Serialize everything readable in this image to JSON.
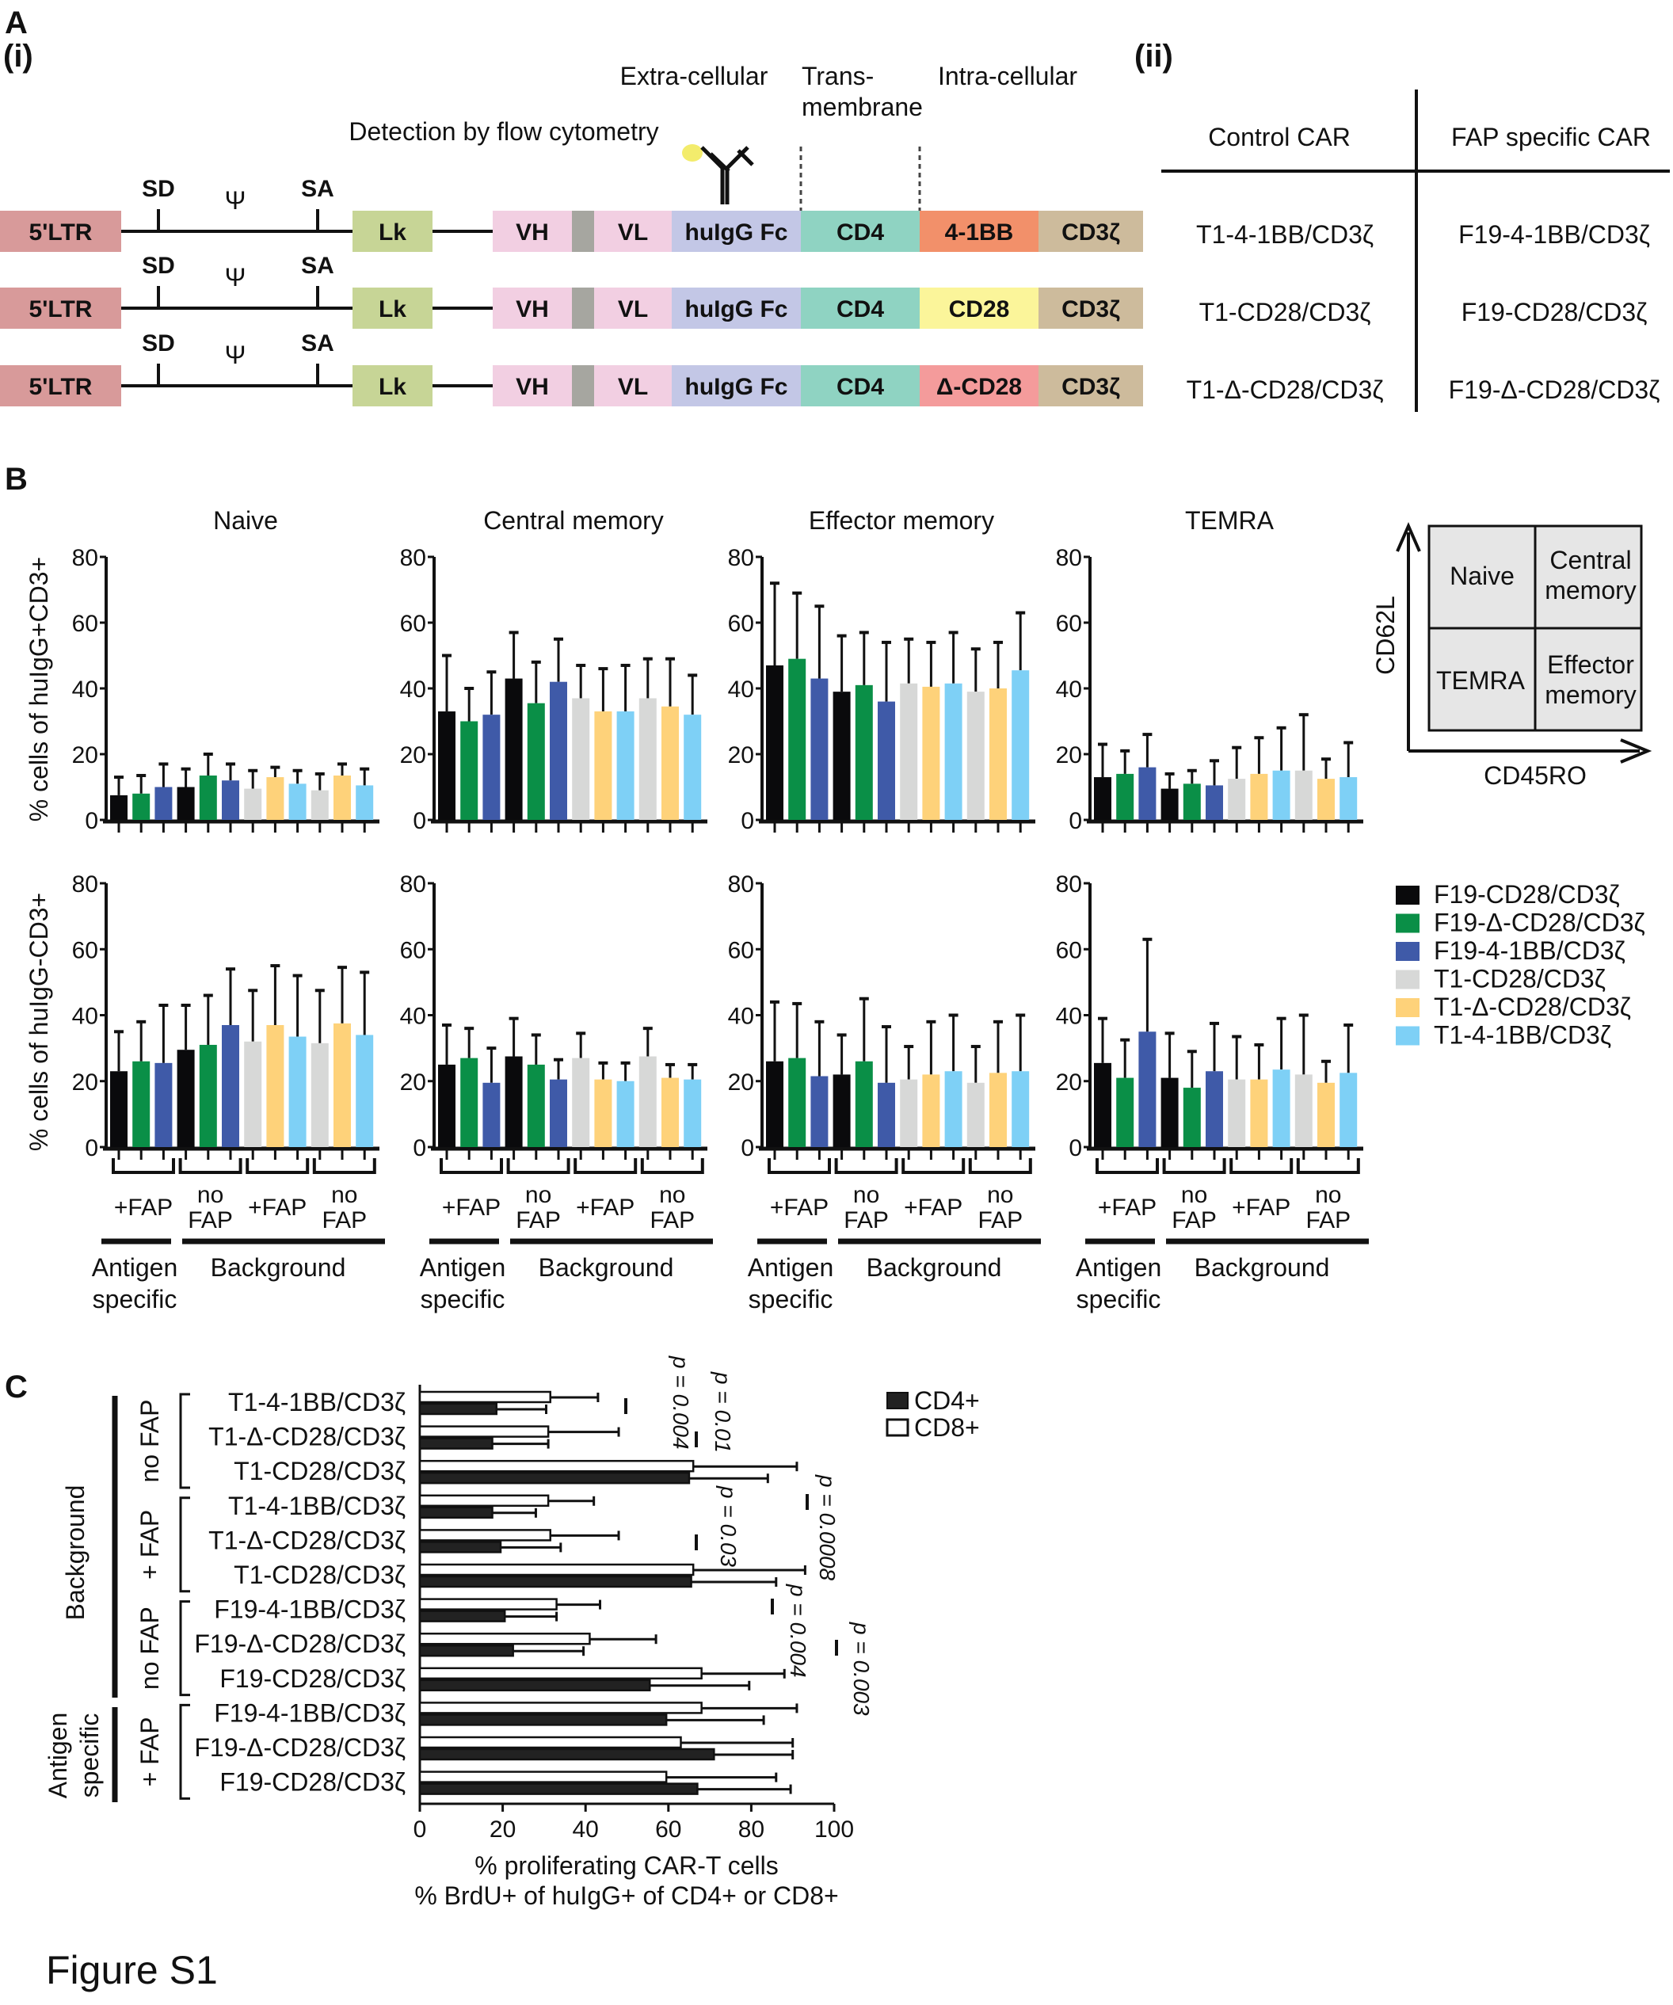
{
  "panel_labels": {
    "A": "A",
    "i": "(i)",
    "ii": "(ii)",
    "B": "B",
    "C": "C"
  },
  "figure_label": "Figure S1",
  "construct": {
    "extracellular": "Extra-cellular",
    "transmembrane_1": "Trans-",
    "transmembrane_2": "membrane",
    "intracellular": "Intra-cellular",
    "detection": "Detection by flow cytometry",
    "sd": "SD",
    "sa": "SA",
    "psi": "Ψ",
    "ltr": "5'LTR",
    "lk": "Lk",
    "vh": "VH",
    "vl": "VL",
    "fc": "huIgG Fc",
    "cd4": "CD4",
    "cd3z": "CD3ζ",
    "costim": [
      "4-1BB",
      "CD28",
      "Δ-CD28"
    ],
    "colors": {
      "ltr": "#d89a9a",
      "lk": "#c7d596",
      "vh": "#f2cfe2",
      "hinge": "#a6a6a0",
      "vl": "#f2cfe2",
      "fc": "#c3c7e6",
      "cd4": "#8fd3c2",
      "41bb": "#f2906a",
      "cd28": "#fbf59a",
      "dcd28": "#f49b9b",
      "cd3z": "#cdbb9c"
    }
  },
  "car_table": {
    "headers": [
      "Control CAR",
      "FAP specific CAR"
    ],
    "rows": [
      [
        "T1-4-1BB/CD3ζ",
        "F19-4-1BB/CD3ζ"
      ],
      [
        "T1-CD28/CD3ζ",
        "F19-CD28/CD3ζ"
      ],
      [
        "T1-Δ-CD28/CD3ζ",
        "F19-Δ-CD28/CD3ζ"
      ]
    ]
  },
  "quadrant": {
    "cells": [
      "Naive",
      "Central memory",
      "TEMRA",
      "Effector memory"
    ],
    "y_label": "CD62L",
    "x_label": "CD45RO"
  },
  "legend_b": [
    {
      "label": "F19-CD28/CD3ζ",
      "color": "#0a0a0c"
    },
    {
      "label": "F19-Δ-CD28/CD3ζ",
      "color": "#0a8f47"
    },
    {
      "label": "F19-4-1BB/CD3ζ",
      "color": "#3f5aa8"
    },
    {
      "label": "T1-CD28/CD3ζ",
      "color": "#d7d8d7"
    },
    {
      "label": "T1-Δ-CD28/CD3ζ",
      "color": "#fed27a"
    },
    {
      "label": "T1-4-1BB/CD3ζ",
      "color": "#7ed0f6"
    }
  ],
  "group_labels": {
    "fap": "+FAP",
    "no": "no",
    "fap_word": "FAP",
    "antigen": "Antigen",
    "specific": "specific",
    "background": "Background"
  },
  "chart_data": [
    {
      "type": "bar",
      "panel": "B",
      "titles": [
        "Naive",
        "Central memory",
        "Effector memory",
        "TEMRA"
      ],
      "row_ylabels": [
        "% cells of huIgG+CD3+",
        "% cells of huIgG-CD3+"
      ],
      "ylim": [
        0,
        80
      ],
      "yticks": [
        "0",
        "20",
        "40",
        "60",
        "80"
      ],
      "groups": [
        "+FAP (Antigen specific)",
        "no FAP (Background)",
        "+FAP (Background)",
        "no FAP (Background)"
      ],
      "bar_series_order": [
        "F19-CD28/CD3ζ",
        "F19-Δ-CD28/CD3ζ",
        "F19-4-1BB/CD3ζ",
        "F19-CD28/CD3ζ",
        "F19-Δ-CD28/CD3ζ",
        "F19-4-1BB/CD3ζ",
        "T1-CD28/CD3ζ",
        "T1-Δ-CD28/CD3ζ",
        "T1-4-1BB/CD3ζ",
        "T1-CD28/CD3ζ",
        "T1-Δ-CD28/CD3ζ",
        "T1-4-1BB/CD3ζ"
      ],
      "panels": [
        {
          "row": 0,
          "title_index": 0,
          "values": [
            7.5,
            8,
            10,
            10,
            13.5,
            12,
            9.5,
            13,
            11,
            9,
            13.5,
            10.5
          ],
          "err_top": [
            13,
            13.5,
            17,
            15.5,
            20,
            17,
            15,
            16,
            15,
            14,
            17,
            15.5
          ]
        },
        {
          "row": 0,
          "title_index": 1,
          "values": [
            33,
            30,
            32,
            43,
            35.5,
            42,
            37,
            33,
            33,
            37,
            34.5,
            32
          ],
          "err_top": [
            50,
            40,
            45,
            57,
            48,
            55,
            47,
            46,
            47,
            49,
            49,
            44
          ]
        },
        {
          "row": 0,
          "title_index": 2,
          "values": [
            47,
            49,
            43,
            39,
            41,
            36,
            41.5,
            40.5,
            41.5,
            39,
            40,
            45.5
          ],
          "err_top": [
            72,
            69,
            65,
            56,
            57,
            54,
            55,
            54,
            57,
            52,
            54,
            63
          ]
        },
        {
          "row": 0,
          "title_index": 3,
          "values": [
            13,
            14,
            16,
            9.5,
            11,
            10.5,
            12.5,
            14,
            15,
            15,
            12.5,
            13
          ],
          "err_top": [
            23,
            21,
            26,
            14,
            15,
            18,
            22,
            25,
            28,
            32,
            18.5,
            23.5
          ]
        },
        {
          "row": 1,
          "title_index": 0,
          "values": [
            23,
            26,
            25.5,
            29.5,
            31,
            37,
            32,
            37,
            33.5,
            31.5,
            37.5,
            34
          ],
          "err_top": [
            35,
            38,
            43,
            43,
            46,
            54,
            47.5,
            55,
            52,
            47.5,
            54.5,
            53
          ]
        },
        {
          "row": 1,
          "title_index": 1,
          "values": [
            25,
            27,
            19.5,
            27.5,
            25,
            20.5,
            27,
            20.5,
            20,
            27.5,
            21,
            20.5
          ],
          "err_top": [
            37,
            36,
            30,
            39,
            34,
            26.5,
            34.5,
            25.5,
            25.5,
            36,
            25,
            25
          ]
        },
        {
          "row": 1,
          "title_index": 2,
          "values": [
            26,
            27,
            21.5,
            22,
            26,
            19.5,
            20.5,
            22,
            23,
            19.5,
            22.5,
            23
          ],
          "err_top": [
            44,
            43.5,
            38,
            34,
            45,
            36.5,
            30.5,
            38,
            40,
            30.5,
            38,
            40
          ]
        },
        {
          "row": 1,
          "title_index": 3,
          "values": [
            25.5,
            21,
            35,
            21,
            18,
            23,
            20.5,
            20.5,
            23.5,
            22,
            19.5,
            22.5
          ],
          "err_top": [
            39,
            32.5,
            63,
            34.5,
            29,
            37.5,
            33.5,
            31,
            39,
            40,
            26,
            37
          ]
        }
      ]
    },
    {
      "type": "bar",
      "orientation": "horizontal",
      "panel": "C",
      "xlabel_1": "% proliferating CAR-T cells",
      "xlabel_2": "% BrdU+ of huIgG+ of CD4+ or CD8+",
      "xlim": [
        0,
        100
      ],
      "xticks": [
        "0",
        "20",
        "40",
        "60",
        "80",
        "100"
      ],
      "legend": [
        {
          "label": "CD4+",
          "color": "#222222"
        },
        {
          "label": "CD8+",
          "color": "#ffffff"
        }
      ],
      "categories": [
        "T1-4-1BB/CD3ζ",
        "T1-Δ-CD28/CD3ζ",
        "T1-CD28/CD3ζ",
        "T1-4-1BB/CD3ζ",
        "T1-Δ-CD28/CD3ζ",
        "T1-CD28/CD3ζ",
        "F19-4-1BB/CD3ζ",
        "F19-Δ-CD28/CD3ζ",
        "F19-CD28/CD3ζ",
        "F19-4-1BB/CD3ζ",
        "F19-Δ-CD28/CD3ζ",
        "F19-CD28/CD3ζ"
      ],
      "condition_groups": [
        "no FAP",
        "+ FAP",
        "no FAP",
        "+ FAP"
      ],
      "outer_groups": [
        "Background",
        "Antigen specific"
      ],
      "series": [
        {
          "name": "CD8+",
          "values": [
            31.5,
            31,
            66,
            31,
            31.5,
            66,
            33,
            41,
            68,
            68,
            63,
            59.5
          ],
          "err_top": [
            43,
            48,
            91,
            42,
            48,
            93,
            43.5,
            57,
            88,
            91,
            90,
            86
          ]
        },
        {
          "name": "CD4+",
          "values": [
            18.5,
            17.5,
            65,
            17.5,
            19.5,
            65.5,
            20.5,
            22.5,
            55.5,
            59.5,
            71,
            67
          ],
          "err_top": [
            30.5,
            31,
            84,
            28,
            34,
            86,
            33,
            39.5,
            79.5,
            83,
            90,
            89.5
          ]
        }
      ],
      "p_values": [
        "p = 0.004",
        "p = 0.01",
        "p = 0.03",
        "p = 0.0008",
        "p = 0.004",
        "p = 0.003"
      ]
    }
  ]
}
